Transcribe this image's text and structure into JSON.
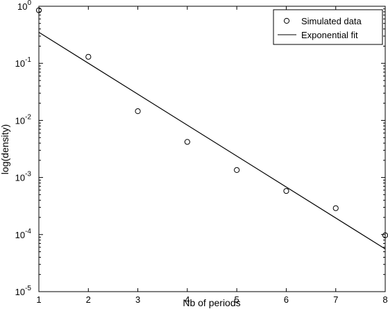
{
  "chart_data": {
    "type": "scatter",
    "title": "",
    "xlabel": "Nb of periods",
    "ylabel": "log(density)",
    "xlim": [
      1,
      8
    ],
    "ylim": [
      1e-05,
      1
    ],
    "yscale": "log",
    "grid": false,
    "legend_position": "top-right",
    "x_ticks": [
      "1",
      "2",
      "3",
      "4",
      "5",
      "6",
      "7",
      "8"
    ],
    "y_ticks": [
      {
        "base": "10",
        "exp": "-5"
      },
      {
        "base": "10",
        "exp": "-4"
      },
      {
        "base": "10",
        "exp": "-3"
      },
      {
        "base": "10",
        "exp": "-2"
      },
      {
        "base": "10",
        "exp": "-1"
      },
      {
        "base": "10",
        "exp": "0"
      }
    ],
    "series": [
      {
        "name": "Simulated data",
        "kind": "markers",
        "marker": "circle",
        "x": [
          1,
          2,
          3,
          4,
          5,
          6,
          7,
          8
        ],
        "y": [
          0.85,
          0.13,
          0.0145,
          0.0042,
          0.00135,
          0.00058,
          0.00029,
          9.7e-05
        ]
      },
      {
        "name": "Exponential fit",
        "kind": "line",
        "x": [
          1,
          8
        ],
        "y": [
          0.35,
          5.6e-05
        ]
      }
    ]
  }
}
